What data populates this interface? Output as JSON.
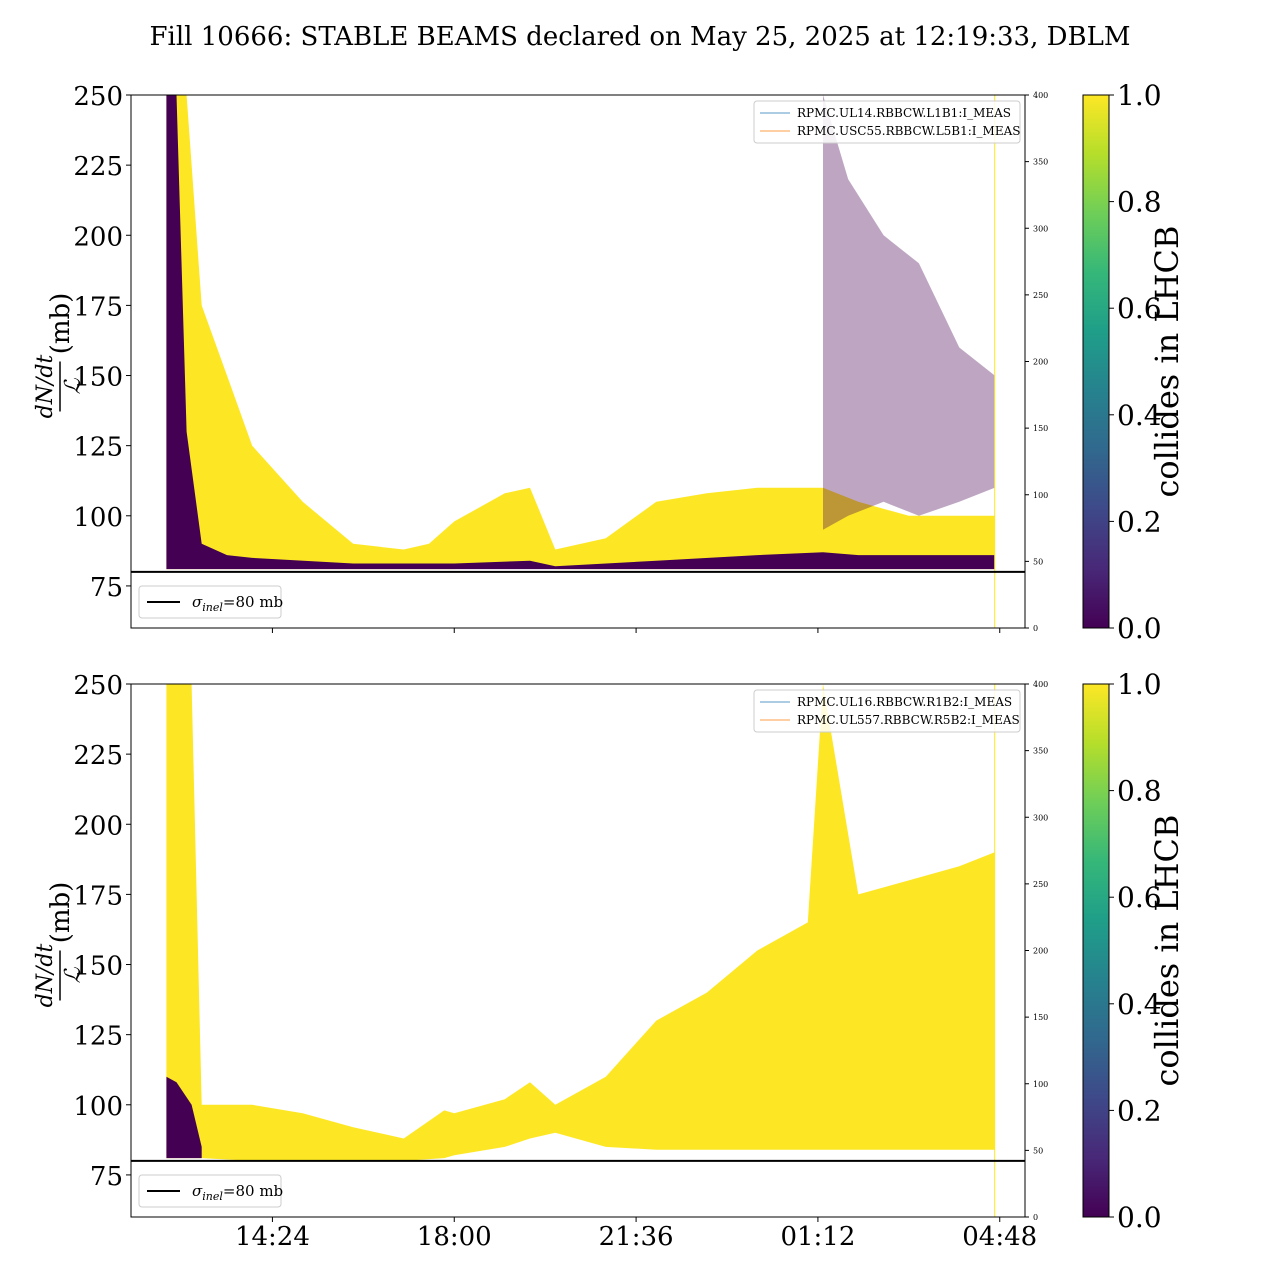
{
  "title": "Fill 10666: STABLE BEAMS declared on May 25, 2025 at 12:19:33, DBLM",
  "colors": {
    "axis": "#000000",
    "yellow": "#fde725",
    "purple": "#440154",
    "ref_line": "#000000",
    "legend_line_1": "#1f77b4",
    "legend_line_2": "#ff7f0e"
  },
  "chart_data": [
    {
      "type": "area",
      "panel": "top",
      "ylabel_math": "dN/dt",
      "ylabel_den": "ℒ",
      "ylabel_unit": "(mb)",
      "ylim": [
        60,
        250
      ],
      "yticks": [
        75,
        100,
        125,
        150,
        175,
        200,
        225,
        250
      ],
      "y2lim": [
        0,
        400
      ],
      "y2ticks": [
        0,
        50,
        100,
        150,
        200,
        250,
        300,
        350,
        400
      ],
      "xticks": [],
      "reference_line": {
        "y": 80,
        "label_sym": "σ",
        "label_sub": "inel",
        "label_rest": "=80 mb"
      },
      "legend": [
        "RPMC.UL14.RBBCW.L1B1:I_MEAS",
        "RPMC.USC55.RBBCW.L5B1:I_MEAS"
      ],
      "colorbar": {
        "label": "collides in LHCB",
        "ticks": [
          "0.0",
          "0.2",
          "0.4",
          "0.6",
          "0.8",
          "1.0"
        ]
      },
      "series": [
        {
          "colliding": 1.0,
          "x": [
            12.3,
            12.5,
            12.7,
            13.0,
            13.5,
            14.0,
            15.0,
            16.0,
            17.0,
            17.5,
            18.0,
            19.0,
            19.5,
            20.0,
            21.0,
            22.0,
            23.0,
            24.0,
            25.0,
            25.3,
            26.0,
            27.0,
            28.0,
            28.7
          ],
          "upper": [
            250,
            250,
            250,
            175,
            150,
            125,
            105,
            90,
            88,
            90,
            98,
            108,
            110,
            88,
            92,
            105,
            108,
            110,
            110,
            110,
            105,
            100,
            100,
            100
          ],
          "lower": [
            81,
            81,
            81,
            81,
            81,
            81,
            81,
            81,
            81,
            81,
            81,
            82,
            82,
            81,
            81,
            81,
            81,
            81,
            81,
            81,
            81,
            81,
            81,
            81
          ]
        },
        {
          "colliding": 0.0,
          "x": [
            12.3,
            12.5,
            12.7,
            13.0,
            13.5,
            14.0,
            16.0,
            18.0,
            19.5,
            20.0,
            22.0,
            24.0,
            25.3,
            26.0,
            28.7
          ],
          "upper": [
            250,
            250,
            130,
            90,
            86,
            85,
            83,
            83,
            84,
            82,
            84,
            86,
            87,
            86,
            86
          ],
          "lower": [
            81,
            81,
            81,
            81,
            81,
            81,
            81,
            81,
            81,
            81,
            81,
            81,
            81,
            81,
            81
          ]
        },
        {
          "colliding": 0.0,
          "style": "faint",
          "x": [
            25.3,
            25.8,
            26.5,
            27.2,
            28.0,
            28.7
          ],
          "upper": [
            250,
            220,
            200,
            190,
            160,
            150
          ],
          "lower": [
            95,
            100,
            105,
            100,
            105,
            110
          ]
        }
      ]
    },
    {
      "type": "area",
      "panel": "bottom",
      "ylabel_math": "dN/dt",
      "ylabel_den": "ℒ",
      "ylabel_unit": "(mb)",
      "ylim": [
        60,
        250
      ],
      "yticks": [
        75,
        100,
        125,
        150,
        175,
        200,
        225,
        250
      ],
      "y2lim": [
        0,
        400
      ],
      "y2ticks": [
        0,
        50,
        100,
        150,
        200,
        250,
        300,
        350,
        400
      ],
      "xticks": [
        "14:24",
        "18:00",
        "21:36",
        "01:12",
        "04:48"
      ],
      "reference_line": {
        "y": 80,
        "label_sym": "σ",
        "label_sub": "inel",
        "label_rest": "=80 mb"
      },
      "legend": [
        "RPMC.UL16.RBBCW.R1B2:I_MEAS",
        "RPMC.UL557.RBBCW.R5B2:I_MEAS"
      ],
      "colorbar": {
        "label": "collides in LHCB",
        "ticks": [
          "0.0",
          "0.2",
          "0.4",
          "0.6",
          "0.8",
          "1.0"
        ]
      },
      "series": [
        {
          "colliding": 1.0,
          "x": [
            12.3,
            12.5,
            12.8,
            13.0,
            14.0,
            15.0,
            16.0,
            17.0,
            17.8,
            18.0,
            19.0,
            19.5,
            20.0,
            21.0,
            22.0,
            23.0,
            24.0,
            25.0,
            25.3,
            26.0,
            27.0,
            28.0,
            28.7
          ],
          "upper": [
            250,
            250,
            250,
            100,
            100,
            97,
            92,
            88,
            98,
            97,
            102,
            108,
            100,
            110,
            130,
            140,
            155,
            165,
            250,
            175,
            180,
            185,
            190
          ],
          "lower": [
            81,
            81,
            81,
            81,
            80,
            80,
            80,
            80,
            81,
            82,
            85,
            88,
            90,
            85,
            84,
            84,
            84,
            84,
            84,
            84,
            84,
            84,
            84
          ]
        },
        {
          "colliding": 0.0,
          "x": [
            12.3,
            12.5,
            12.8,
            13.0
          ],
          "upper": [
            110,
            108,
            100,
            85
          ],
          "lower": [
            81,
            81,
            81,
            81
          ]
        }
      ]
    }
  ]
}
